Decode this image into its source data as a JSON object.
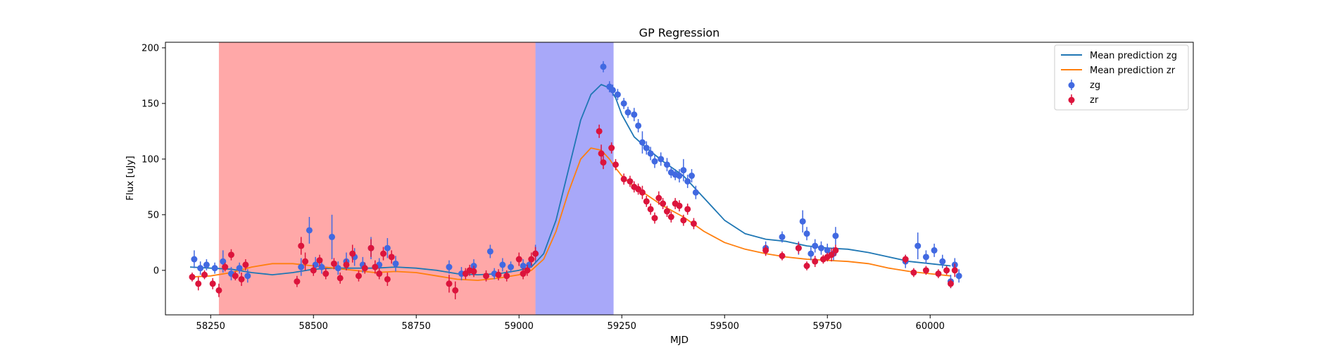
{
  "chart_data": {
    "type": "scatter",
    "title": "GP Regression",
    "xlabel": "MJD",
    "ylabel": "Flux [uJy]",
    "xlim": [
      58140,
      60640
    ],
    "ylim": [
      -40,
      205
    ],
    "xticks": [
      58250,
      58500,
      58750,
      59000,
      59250,
      59500,
      59750,
      60000
    ],
    "yticks": [
      0,
      50,
      100,
      150,
      200
    ],
    "grid": false,
    "legend_position": "top-right",
    "shaded_regions": [
      {
        "x0": 58270,
        "x1": 59040,
        "color": "#ff0000",
        "opacity": 0.34
      },
      {
        "x0": 59040,
        "x1": 59230,
        "color": "#0000ee",
        "opacity": 0.34
      }
    ],
    "series": [
      {
        "name": "Mean prediction zg",
        "kind": "line",
        "color": "#1f77b4",
        "x": [
          58200,
          58250,
          58300,
          58350,
          58400,
          58450,
          58500,
          58550,
          58600,
          58650,
          58700,
          58750,
          58800,
          58850,
          58900,
          58950,
          59000,
          59030,
          59060,
          59090,
          59120,
          59150,
          59175,
          59200,
          59220,
          59235,
          59250,
          59280,
          59310,
          59350,
          59400,
          59450,
          59500,
          59550,
          59600,
          59650,
          59700,
          59750,
          59800,
          59850,
          59900,
          59950,
          60000,
          60050
        ],
        "y": [
          3,
          2,
          1,
          -2,
          -4,
          -2,
          1,
          2,
          2,
          2,
          3,
          2,
          0,
          -3,
          -4,
          -3,
          0,
          3,
          15,
          45,
          90,
          135,
          158,
          167,
          164,
          155,
          140,
          120,
          110,
          98,
          85,
          65,
          45,
          33,
          28,
          26,
          22,
          20,
          19,
          16,
          12,
          8,
          6,
          4
        ]
      },
      {
        "name": "Mean prediction zr",
        "kind": "line",
        "color": "#ff7f0e",
        "x": [
          58200,
          58250,
          58300,
          58350,
          58400,
          58450,
          58500,
          58550,
          58600,
          58650,
          58700,
          58750,
          58800,
          58850,
          58900,
          58950,
          59000,
          59030,
          59060,
          59090,
          59120,
          59150,
          59175,
          59200,
          59220,
          59235,
          59250,
          59280,
          59310,
          59350,
          59400,
          59450,
          59500,
          59550,
          59600,
          59650,
          59700,
          59750,
          59800,
          59850,
          59900,
          59950,
          60000,
          60050
        ],
        "y": [
          -6,
          -5,
          -2,
          3,
          6,
          6,
          4,
          2,
          0,
          -2,
          -1,
          -2,
          -5,
          -8,
          -9,
          -7,
          -4,
          0,
          10,
          35,
          70,
          100,
          110,
          108,
          100,
          92,
          85,
          75,
          68,
          58,
          48,
          35,
          25,
          19,
          15,
          12,
          10,
          9,
          8,
          6,
          2,
          -1,
          -3,
          -5
        ]
      },
      {
        "name": "zg",
        "kind": "errorbar",
        "color": "#4169e1",
        "x": [
          58210,
          58225,
          58240,
          58260,
          58280,
          58300,
          58320,
          58340,
          58470,
          58490,
          58505,
          58520,
          58545,
          58560,
          58580,
          58600,
          58620,
          58640,
          58660,
          58680,
          58700,
          58830,
          58860,
          58890,
          58930,
          58940,
          58960,
          58980,
          59010,
          59025,
          59040,
          59205,
          59220,
          59228,
          59240,
          59255,
          59265,
          59280,
          59290,
          59300,
          59310,
          59320,
          59330,
          59345,
          59360,
          59370,
          59380,
          59390,
          59400,
          59410,
          59420,
          59430,
          59600,
          59640,
          59680,
          59690,
          59700,
          59710,
          59720,
          59735,
          59750,
          59765,
          59770,
          59940,
          59970,
          59990,
          60010,
          60030,
          60050,
          60060,
          60070
        ],
        "y": [
          10,
          2,
          5,
          2,
          8,
          -3,
          2,
          -5,
          3,
          36,
          5,
          3,
          30,
          2,
          8,
          12,
          5,
          20,
          5,
          20,
          6,
          3,
          -3,
          4,
          17,
          -3,
          5,
          3,
          4,
          5,
          15,
          183,
          165,
          162,
          158,
          150,
          142,
          140,
          130,
          115,
          110,
          105,
          98,
          100,
          95,
          88,
          86,
          85,
          90,
          80,
          85,
          70,
          20,
          30,
          20,
          44,
          33,
          15,
          22,
          20,
          18,
          15,
          31,
          8,
          22,
          12,
          18,
          8,
          -10,
          5,
          -5
        ],
        "err": [
          8,
          6,
          5,
          5,
          10,
          6,
          5,
          6,
          8,
          12,
          7,
          6,
          20,
          6,
          8,
          8,
          7,
          10,
          6,
          9,
          7,
          6,
          6,
          6,
          6,
          5,
          6,
          5,
          6,
          6,
          8,
          5,
          5,
          5,
          5,
          5,
          5,
          6,
          6,
          10,
          6,
          6,
          6,
          6,
          6,
          5,
          5,
          6,
          10,
          6,
          6,
          6,
          6,
          5,
          6,
          10,
          6,
          6,
          6,
          6,
          6,
          6,
          8,
          6,
          12,
          6,
          6,
          6,
          6,
          6,
          6
        ]
      },
      {
        "name": "zr",
        "kind": "errorbar",
        "color": "#dc143c",
        "x": [
          58205,
          58220,
          58235,
          58255,
          58270,
          58285,
          58300,
          58310,
          58325,
          58335,
          58460,
          58470,
          58480,
          58500,
          58515,
          58530,
          58550,
          58565,
          58580,
          58595,
          58610,
          58625,
          58640,
          58650,
          58660,
          58670,
          58680,
          58690,
          58830,
          58845,
          58870,
          58880,
          58890,
          58920,
          58950,
          58970,
          59000,
          59010,
          59020,
          59030,
          59040,
          59195,
          59200,
          59205,
          59225,
          59235,
          59255,
          59270,
          59280,
          59290,
          59300,
          59310,
          59320,
          59330,
          59340,
          59350,
          59360,
          59370,
          59380,
          59390,
          59400,
          59410,
          59425,
          59600,
          59640,
          59680,
          59700,
          59720,
          59740,
          59750,
          59760,
          59770,
          59940,
          59960,
          59990,
          60020,
          60040,
          60050,
          60060
        ],
        "y": [
          -6,
          -12,
          -4,
          -12,
          -18,
          3,
          14,
          -5,
          -8,
          5,
          -10,
          22,
          8,
          0,
          9,
          -3,
          6,
          -7,
          5,
          15,
          -5,
          2,
          20,
          3,
          -3,
          15,
          -8,
          12,
          -12,
          -18,
          -3,
          0,
          -1,
          -5,
          -4,
          -5,
          10,
          -3,
          0,
          10,
          15,
          125,
          105,
          97,
          110,
          95,
          82,
          80,
          75,
          73,
          70,
          62,
          55,
          47,
          65,
          60,
          53,
          48,
          60,
          58,
          45,
          55,
          42,
          18,
          13,
          20,
          4,
          8,
          10,
          12,
          14,
          18,
          10,
          -2,
          0,
          -3,
          0,
          -12,
          0
        ],
        "err": [
          4,
          6,
          4,
          5,
          6,
          4,
          5,
          4,
          6,
          5,
          5,
          8,
          8,
          5,
          5,
          5,
          5,
          5,
          5,
          8,
          5,
          5,
          8,
          6,
          5,
          6,
          6,
          6,
          8,
          8,
          5,
          5,
          5,
          5,
          5,
          5,
          6,
          5,
          5,
          6,
          6,
          6,
          8,
          6,
          5,
          5,
          5,
          5,
          5,
          5,
          6,
          5,
          5,
          5,
          6,
          5,
          5,
          5,
          5,
          5,
          5,
          5,
          5,
          5,
          4,
          5,
          4,
          5,
          4,
          4,
          6,
          5,
          4,
          4,
          4,
          4,
          4,
          4,
          6
        ]
      }
    ]
  }
}
